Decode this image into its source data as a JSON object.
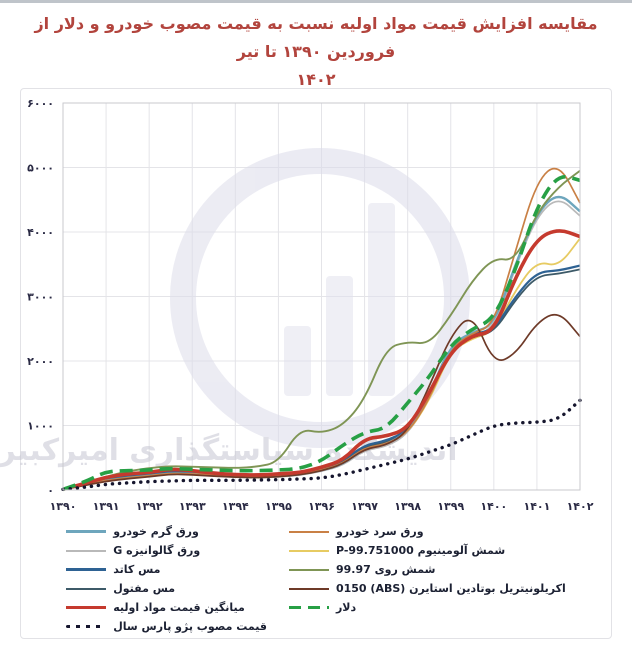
{
  "page": {
    "title_line1": "مقایسه افزایش قیمت مواد اولیه نسبت به قیمت مصوب خودرو و دلار از فروردین ۱۳۹۰ تا تیر",
    "title_line2": "۱۴۰۲",
    "title_color": "#b2443d",
    "watermark_text": "اندیشکده سیاستگذاری امیرکبیر"
  },
  "chart_data": {
    "type": "line",
    "title": "مقایسه افزایش قیمت مواد اولیه نسبت به قیمت مصوب خودرو و دلار از فروردین ۱۳۹۰ تا تیر ۱۴۰۲",
    "xlim": [
      1390,
      1402
    ],
    "ylim": [
      0,
      6000
    ],
    "grid": true,
    "legend_position": "bottom-two-columns",
    "x_tick_values": [
      1390,
      1391,
      1392,
      1393,
      1394,
      1395,
      1396,
      1397,
      1398,
      1399,
      1400,
      1401,
      1402
    ],
    "x_tick_labels": [
      "۱۳۹۰",
      "۱۳۹۱",
      "۱۳۹۲",
      "۱۳۹۳",
      "۱۳۹۴",
      "۱۳۹۵",
      "۱۳۹۶",
      "۱۳۹۷",
      "۱۳۹۸",
      "۱۳۹۹",
      "۱۴۰۰",
      "۱۴۰۱",
      "۱۴۰۲"
    ],
    "y_tick_values": [
      0,
      1000,
      2000,
      3000,
      4000,
      5000,
      6000
    ],
    "y_tick_labels": [
      "۰",
      "۱۰۰۰",
      "۲۰۰۰",
      "۳۰۰۰",
      "۴۰۰۰",
      "۵۰۰۰",
      "۶۰۰۰"
    ],
    "x": [
      1390,
      1390.5,
      1391,
      1391.5,
      1392,
      1392.5,
      1393,
      1393.5,
      1394,
      1394.5,
      1395,
      1395.5,
      1396,
      1396.5,
      1397,
      1397.5,
      1398,
      1398.5,
      1399,
      1399.5,
      1400,
      1400.5,
      1401,
      1401.5,
      1402
    ],
    "series": [
      {
        "name": "ورق گرم خودرو",
        "color": "#6ea6bd",
        "width": 2.4,
        "style": "solid",
        "z": 5,
        "legend": {
          "column": 0,
          "row": 0
        },
        "values": [
          10,
          80,
          150,
          190,
          220,
          260,
          250,
          230,
          210,
          200,
          210,
          240,
          300,
          400,
          650,
          700,
          900,
          1450,
          2250,
          2450,
          2550,
          3500,
          4300,
          4620,
          4320
        ]
      },
      {
        "name": "ورق گالوانیزه G",
        "color": "#b9b9b9",
        "width": 1.7,
        "style": "solid",
        "z": 1,
        "legend": {
          "column": 0,
          "row": 1
        },
        "values": [
          10,
          75,
          140,
          180,
          210,
          250,
          240,
          220,
          200,
          190,
          200,
          230,
          290,
          380,
          620,
          670,
          860,
          1400,
          2200,
          2400,
          2500,
          3450,
          4250,
          4550,
          4250
        ]
      },
      {
        "name": "مس کاتد",
        "color": "#2e6293",
        "width": 2.2,
        "style": "solid",
        "z": 4,
        "legend": {
          "column": 0,
          "row": 2
        },
        "values": [
          10,
          90,
          170,
          210,
          250,
          290,
          270,
          250,
          230,
          220,
          240,
          270,
          330,
          450,
          700,
          760,
          920,
          1480,
          2250,
          2420,
          2480,
          3000,
          3380,
          3400,
          3480
        ]
      },
      {
        "name": "مس مفتول",
        "color": "#3d5a68",
        "width": 1.8,
        "style": "solid",
        "z": 3,
        "legend": {
          "column": 0,
          "row": 3
        },
        "values": [
          10,
          85,
          160,
          200,
          240,
          280,
          260,
          240,
          220,
          210,
          230,
          260,
          320,
          430,
          680,
          730,
          900,
          1450,
          2200,
          2380,
          2440,
          2950,
          3320,
          3350,
          3420
        ]
      },
      {
        "name": "میانگین قیمت مواد اولیه",
        "color": "#c53a2e",
        "width": 3.6,
        "style": "solid",
        "z": 9,
        "legend": {
          "column": 0,
          "row": 4
        },
        "values": [
          10,
          100,
          200,
          250,
          270,
          325,
          300,
          260,
          240,
          230,
          250,
          270,
          350,
          460,
          800,
          830,
          950,
          1500,
          2150,
          2400,
          2450,
          3300,
          3900,
          4050,
          3930
        ]
      },
      {
        "name": "قیمت مصوب پژو پارس سال",
        "color": "#16162e",
        "width": 3.4,
        "style": "dotted",
        "z": 11,
        "legend": {
          "column": 0,
          "row": 5
        },
        "values": [
          10,
          40,
          90,
          110,
          130,
          140,
          150,
          150,
          150,
          155,
          160,
          170,
          185,
          240,
          320,
          400,
          480,
          590,
          700,
          850,
          1000,
          1040,
          1050,
          1090,
          1390
        ]
      },
      {
        "name": "ورق سرد خودرو",
        "color": "#c98045",
        "width": 1.7,
        "style": "solid",
        "z": 6,
        "legend": {
          "column": 1,
          "row": 0
        },
        "values": [
          10,
          80,
          150,
          190,
          220,
          260,
          250,
          230,
          210,
          200,
          215,
          245,
          305,
          410,
          660,
          710,
          880,
          1400,
          2200,
          2430,
          2560,
          3700,
          4800,
          5080,
          4450
        ]
      },
      {
        "name": "شمش آلومینیوم P-99.751000",
        "color": "#e7cb62",
        "width": 1.8,
        "style": "solid",
        "z": 2,
        "legend": {
          "column": 1,
          "row": 1
        },
        "values": [
          10,
          75,
          145,
          185,
          215,
          255,
          245,
          225,
          205,
          195,
          210,
          240,
          300,
          420,
          700,
          750,
          880,
          1380,
          2150,
          2350,
          2450,
          3100,
          3550,
          3460,
          3900
        ]
      },
      {
        "name": "شمش روی 99.97",
        "color": "#7f9555",
        "width": 1.9,
        "style": "solid",
        "z": 8,
        "legend": {
          "column": 1,
          "row": 2
        },
        "values": [
          10,
          100,
          210,
          290,
          340,
          370,
          360,
          350,
          340,
          360,
          430,
          950,
          880,
          1000,
          1400,
          2200,
          2300,
          2260,
          2700,
          3250,
          3600,
          3550,
          4300,
          4700,
          4950
        ]
      },
      {
        "name": "اکریلونیتریل بوتادین استایرن (ABS) 0150",
        "color": "#6e3a28",
        "width": 1.7,
        "style": "solid",
        "z": 7,
        "legend": {
          "column": 1,
          "row": 3
        },
        "values": [
          10,
          70,
          135,
          175,
          205,
          245,
          235,
          215,
          200,
          190,
          205,
          235,
          295,
          400,
          640,
          690,
          900,
          1600,
          2400,
          2750,
          1950,
          2100,
          2600,
          2780,
          2380
        ]
      },
      {
        "name": "دلار",
        "color": "#27a045",
        "width": 3.6,
        "style": "dashed",
        "z": 10,
        "legend": {
          "column": 1,
          "row": 4
        },
        "values": [
          10,
          120,
          290,
          300,
          310,
          335,
          320,
          310,
          300,
          300,
          310,
          330,
          450,
          700,
          900,
          950,
          1350,
          1750,
          2250,
          2500,
          2650,
          3400,
          4400,
          4900,
          4800
        ]
      }
    ]
  }
}
